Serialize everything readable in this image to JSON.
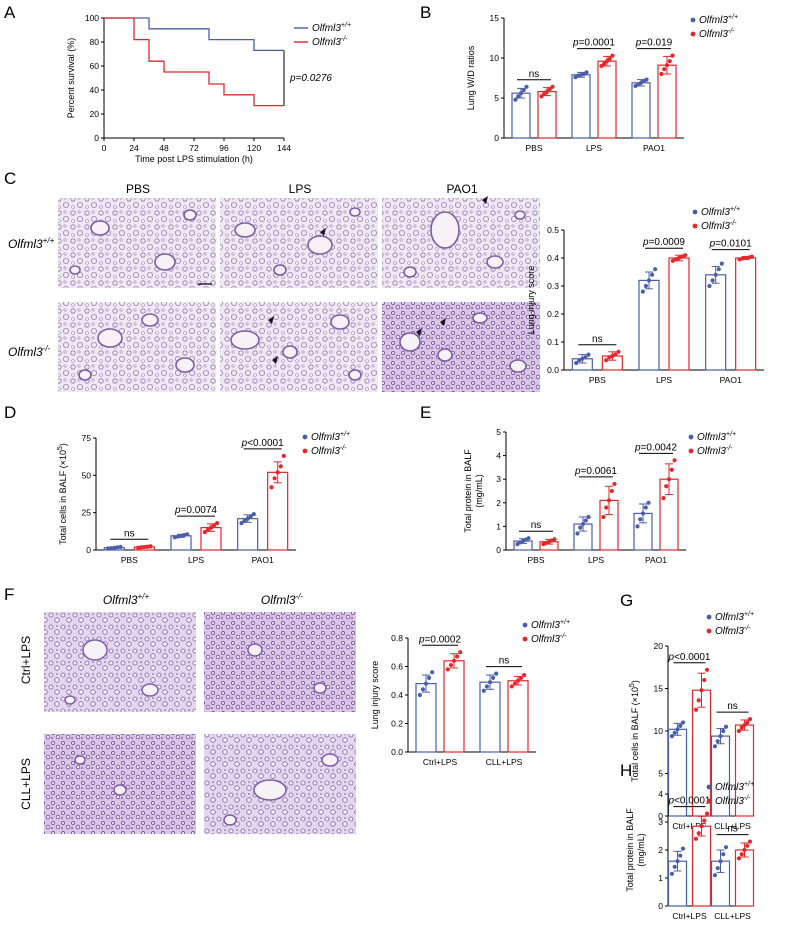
{
  "panels": {
    "A": "A",
    "B": "B",
    "C": "C",
    "D": "D",
    "E": "E",
    "F": "F",
    "G": "G",
    "H": "H"
  },
  "colors": {
    "wt": "#4a5fa8",
    "ko": "#e0282e",
    "bar_edge_wt": "#4a5fa8",
    "bar_edge_ko": "#e0282e"
  },
  "legend": {
    "wt_base": "Olfml3",
    "wt_sup": "+/+",
    "ko_base": "Olfml3",
    "ko_sup": "-/-"
  },
  "histology": {
    "C_cols": [
      "PBS",
      "LPS",
      "PAO1"
    ],
    "C_rows": [
      {
        "base": "Olfml3",
        "sup": "+/+"
      },
      {
        "base": "Olfml3",
        "sup": "-/-"
      }
    ],
    "F_cols": [
      {
        "base": "Olfml3",
        "sup": "+/+"
      },
      {
        "base": "Olfml3",
        "sup": "-/-"
      }
    ],
    "F_rows": [
      "Ctrl+LPS",
      "CLL+LPS"
    ]
  },
  "chart_data": [
    {
      "id": "A",
      "type": "line",
      "step": true,
      "xlabel": "Time post LPS stimulation (h)",
      "ylabel": "Percent survival (%)",
      "xlim": [
        0,
        144
      ],
      "ylim": [
        0,
        100
      ],
      "xticks": [
        0,
        24,
        48,
        72,
        96,
        120,
        144
      ],
      "yticks": [
        0,
        20,
        40,
        60,
        80,
        100
      ],
      "series": [
        {
          "name": "Olfml3+/+",
          "color": "#4a5fa8",
          "x": [
            0,
            36,
            36,
            84,
            84,
            120,
            120,
            144
          ],
          "y": [
            100,
            100,
            91,
            91,
            82,
            82,
            73,
            73
          ]
        },
        {
          "name": "Olfml3-/-",
          "color": "#e0282e",
          "x": [
            0,
            24,
            24,
            36,
            36,
            48,
            48,
            84,
            84,
            96,
            96,
            120,
            120,
            144
          ],
          "y": [
            100,
            100,
            82,
            82,
            64,
            64,
            55,
            55,
            45,
            45,
            36,
            36,
            27,
            27
          ]
        }
      ],
      "annotations": [
        {
          "text": "p=0.0276"
        }
      ]
    },
    {
      "id": "B",
      "type": "bar",
      "ylabel": "Lung W/D ratios",
      "ylim": [
        0,
        15
      ],
      "yticks": [
        0,
        5,
        10,
        15
      ],
      "categories": [
        "PBS",
        "LPS",
        "PAO1"
      ],
      "series": [
        {
          "name": "Olfml3+/+",
          "color": "#4a5fa8",
          "values": [
            5.6,
            7.9,
            6.9
          ],
          "err": [
            0.6,
            0.3,
            0.4
          ],
          "points": [
            [
              4.8,
              5.2,
              5.6,
              6.0,
              6.4
            ],
            [
              7.6,
              7.8,
              7.9,
              8.0,
              8.2
            ],
            [
              6.5,
              6.7,
              6.9,
              7.1,
              7.3
            ]
          ]
        },
        {
          "name": "Olfml3-/-",
          "color": "#e0282e",
          "values": [
            5.8,
            9.6,
            9.1
          ],
          "err": [
            0.5,
            0.6,
            1.1
          ],
          "points": [
            [
              5.2,
              5.5,
              5.8,
              6.1,
              6.4
            ],
            [
              9.0,
              9.3,
              9.6,
              9.9,
              10.3
            ],
            [
              8.0,
              8.6,
              9.1,
              9.6,
              10.3
            ]
          ]
        }
      ],
      "significance": [
        "ns",
        "p=0.0001",
        "p=0.019"
      ]
    },
    {
      "id": "C",
      "type": "bar",
      "ylabel": "Lung injury score",
      "ylim": [
        0,
        0.5
      ],
      "yticks": [
        0.0,
        0.1,
        0.2,
        0.3,
        0.4,
        0.5
      ],
      "categories": [
        "PBS",
        "LPS",
        "PAO1"
      ],
      "series": [
        {
          "name": "Olfml3+/+",
          "color": "#4a5fa8",
          "values": [
            0.04,
            0.32,
            0.34
          ],
          "err": [
            0.015,
            0.03,
            0.03
          ],
          "points": [
            [
              0.025,
              0.035,
              0.04,
              0.045,
              0.055
            ],
            [
              0.28,
              0.3,
              0.32,
              0.34,
              0.36
            ],
            [
              0.3,
              0.32,
              0.34,
              0.36,
              0.38
            ]
          ]
        },
        {
          "name": "Olfml3-/-",
          "color": "#e0282e",
          "values": [
            0.05,
            0.4,
            0.4
          ],
          "err": [
            0.015,
            0.01,
            0.005
          ],
          "points": [
            [
              0.035,
              0.045,
              0.05,
              0.055,
              0.065
            ],
            [
              0.39,
              0.395,
              0.4,
              0.405,
              0.41
            ],
            [
              0.395,
              0.398,
              0.4,
              0.402,
              0.405
            ]
          ]
        }
      ],
      "significance": [
        "ns",
        "p=0.0009",
        "p=0.0101"
      ]
    },
    {
      "id": "D",
      "type": "bar",
      "ylabel": "Total cells in BALF (×10",
      "ylabel_sup": "5",
      "ylabel_end": ")",
      "ylim": [
        0,
        75
      ],
      "yticks": [
        0,
        25,
        50,
        75
      ],
      "categories": [
        "PBS",
        "LPS",
        "PAO1"
      ],
      "series": [
        {
          "name": "Olfml3+/+",
          "color": "#4a5fa8",
          "values": [
            1.5,
            9.5,
            21
          ],
          "err": [
            0.5,
            1.0,
            2.5
          ],
          "points": [
            [
              1.0,
              1.2,
              1.5,
              1.8,
              2.0
            ],
            [
              8.5,
              9.0,
              9.5,
              10.0,
              10.5
            ],
            [
              18,
              19.5,
              21,
              22.5,
              24
            ]
          ]
        },
        {
          "name": "Olfml3-/-",
          "color": "#e0282e",
          "values": [
            2,
            15,
            52
          ],
          "err": [
            0.5,
            2.5,
            7
          ],
          "points": [
            [
              1.5,
              1.8,
              2.0,
              2.2,
              2.5
            ],
            [
              12,
              13.5,
              15,
              16.5,
              18
            ],
            [
              42,
              48,
              52,
              56,
              63
            ]
          ]
        }
      ],
      "significance": [
        "ns",
        "p=0.0074",
        "p<0.0001"
      ]
    },
    {
      "id": "E",
      "type": "bar",
      "ylabel": "Total protein in BALF",
      "ylabel2": "(mg/mL)",
      "ylim": [
        0,
        5
      ],
      "yticks": [
        0,
        1,
        2,
        3,
        4,
        5
      ],
      "categories": [
        "PBS",
        "LPS",
        "PAO1"
      ],
      "series": [
        {
          "name": "Olfml3+/+",
          "color": "#4a5fa8",
          "values": [
            0.38,
            1.1,
            1.55
          ],
          "err": [
            0.1,
            0.3,
            0.4
          ],
          "points": [
            [
              0.25,
              0.32,
              0.38,
              0.44,
              0.5
            ],
            [
              0.7,
              0.95,
              1.1,
              1.25,
              1.4
            ],
            [
              1.0,
              1.3,
              1.55,
              1.8,
              2.0
            ]
          ]
        },
        {
          "name": "Olfml3-/-",
          "color": "#e0282e",
          "values": [
            0.35,
            2.1,
            3.0
          ],
          "err": [
            0.1,
            0.6,
            0.65
          ],
          "points": [
            [
              0.25,
              0.3,
              0.35,
              0.4,
              0.45
            ],
            [
              1.4,
              1.8,
              2.1,
              2.5,
              2.8
            ],
            [
              2.2,
              2.7,
              3.0,
              3.4,
              3.8
            ]
          ]
        }
      ],
      "significance": [
        "ns",
        "p=0.0061",
        "p=0.0042"
      ]
    },
    {
      "id": "F",
      "type": "bar",
      "ylabel": "Lung injury score",
      "ylim": [
        0,
        0.8
      ],
      "yticks": [
        0.0,
        0.2,
        0.4,
        0.6,
        0.8
      ],
      "categories": [
        "Ctrl+LPS",
        "CLL+LPS"
      ],
      "series": [
        {
          "name": "Olfml3+/+",
          "color": "#4a5fa8",
          "values": [
            0.48,
            0.49
          ],
          "err": [
            0.06,
            0.05
          ],
          "points": [
            [
              0.4,
              0.44,
              0.48,
              0.52,
              0.56
            ],
            [
              0.43,
              0.46,
              0.49,
              0.52,
              0.55
            ]
          ]
        },
        {
          "name": "Olfml3-/-",
          "color": "#e0282e",
          "values": [
            0.64,
            0.5
          ],
          "err": [
            0.05,
            0.03
          ],
          "points": [
            [
              0.58,
              0.61,
              0.64,
              0.67,
              0.7
            ],
            [
              0.46,
              0.48,
              0.5,
              0.52,
              0.54
            ]
          ]
        }
      ],
      "significance": [
        "p=0.0002",
        "ns"
      ]
    },
    {
      "id": "G",
      "type": "bar",
      "ylabel": "Total cells in BALF (×10",
      "ylabel_sup": "5",
      "ylabel_end": ")",
      "ylim": [
        0,
        20
      ],
      "yticks": [
        0,
        5,
        10,
        15,
        20
      ],
      "categories": [
        "Ctrl+LPS",
        "CLL+LPS"
      ],
      "series": [
        {
          "name": "Olfml3+/+",
          "color": "#4a5fa8",
          "values": [
            10.2,
            9.4
          ],
          "err": [
            0.7,
            0.9
          ],
          "points": [
            [
              9.4,
              9.8,
              10.2,
              10.6,
              11.0
            ],
            [
              8.2,
              8.8,
              9.4,
              10.0,
              10.5
            ]
          ]
        },
        {
          "name": "Olfml3-/-",
          "color": "#e0282e",
          "values": [
            14.8,
            10.7
          ],
          "err": [
            2.0,
            0.6
          ],
          "points": [
            [
              12.5,
              13.6,
              14.8,
              16.0,
              17.2
            ],
            [
              10.0,
              10.4,
              10.7,
              11.0,
              11.4
            ]
          ]
        }
      ],
      "significance": [
        "p<0.0001",
        "ns"
      ]
    },
    {
      "id": "H",
      "type": "bar",
      "ylabel": "Total protein in BALF",
      "ylabel2": "(mg/mL)",
      "ylim": [
        0,
        4
      ],
      "yticks": [
        0,
        1,
        2,
        3,
        4
      ],
      "categories": [
        "Ctrl+LPS",
        "CLL+LPS"
      ],
      "series": [
        {
          "name": "Olfml3+/+",
          "color": "#4a5fa8",
          "values": [
            1.6,
            1.6
          ],
          "err": [
            0.35,
            0.4
          ],
          "points": [
            [
              1.15,
              1.4,
              1.6,
              1.8,
              2.05
            ],
            [
              1.1,
              1.35,
              1.6,
              1.85,
              2.1
            ]
          ]
        },
        {
          "name": "Olfml3-/-",
          "color": "#e0282e",
          "values": [
            2.85,
            2.0
          ],
          "err": [
            0.35,
            0.25
          ],
          "points": [
            [
              2.4,
              2.6,
              2.85,
              3.05,
              3.3
            ],
            [
              1.7,
              1.85,
              2.0,
              2.15,
              2.3
            ]
          ]
        }
      ],
      "significance": [
        "p<0.0001",
        "ns"
      ]
    }
  ]
}
